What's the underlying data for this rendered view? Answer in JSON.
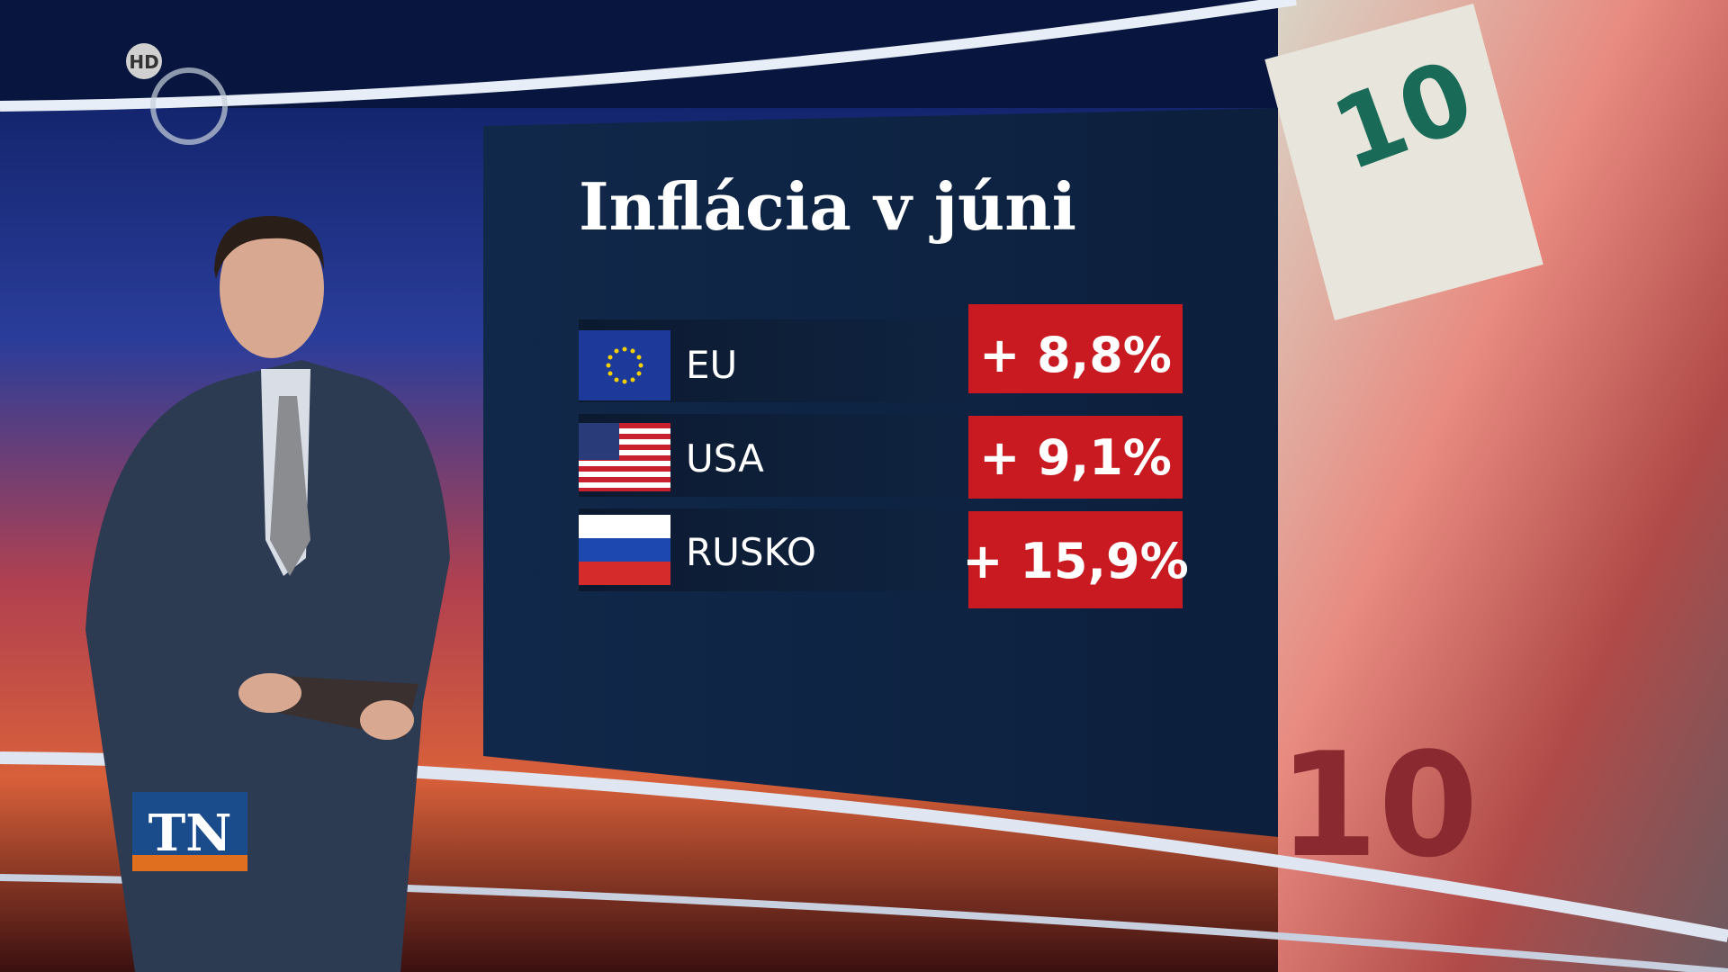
{
  "logo": {
    "hd": "HD",
    "channel": "TN"
  },
  "graphic": {
    "title": "Inflácia v júni",
    "rows": [
      {
        "country": "EU",
        "value": "+ 8,8%"
      },
      {
        "country": "USA",
        "value": "+ 9,1%"
      },
      {
        "country": "RUSKO",
        "value": "+ 15,9%"
      }
    ]
  }
}
